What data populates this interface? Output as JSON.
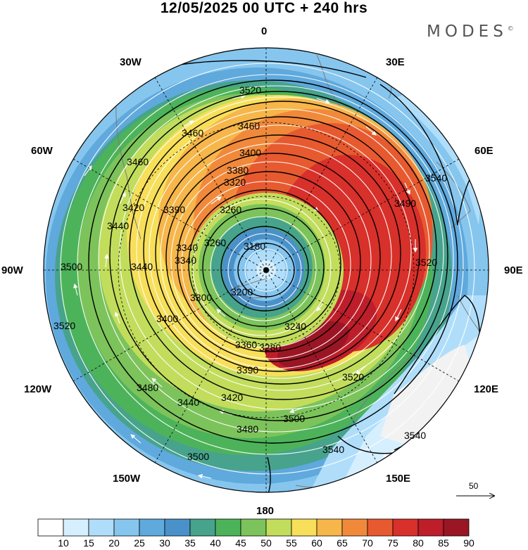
{
  "title": "12/05/2025  00 UTC  + 240 hrs",
  "brand": "MODES",
  "brand_mark": "©",
  "lon_labels": {
    "n": "0",
    "e30": "30E",
    "e60": "60E",
    "e90": "90E",
    "e120": "120E",
    "e150": "150E",
    "s": "180",
    "w150": "150W",
    "w120": "120W",
    "w90": "90W",
    "w60": "60W",
    "w30": "30W"
  },
  "contour_labels": [
    "3520",
    "3460",
    "3460",
    "3400",
    "3380",
    "3320",
    "3260",
    "3180",
    "3260",
    "3340",
    "3390",
    "3420",
    "3440",
    "3500",
    "3520",
    "3400",
    "3300",
    "3200",
    "3240",
    "3280",
    "3360",
    "3390",
    "3420",
    "3440",
    "3480",
    "3500",
    "3480",
    "3500",
    "3520",
    "3540",
    "3540",
    "3540",
    "3520",
    "3490",
    "3460",
    "3440",
    "3340"
  ],
  "colorbar": {
    "ticks": [
      "10",
      "15",
      "20",
      "25",
      "30",
      "35",
      "40",
      "45",
      "50",
      "55",
      "60",
      "65",
      "70",
      "75",
      "80",
      "85",
      "90"
    ],
    "colors": [
      "#ffffff",
      "#d6efff",
      "#b0defa",
      "#86c6ee",
      "#5fa9dd",
      "#4b91c9",
      "#47a38c",
      "#4db35a",
      "#7cc35b",
      "#c2dd5c",
      "#f7df5a",
      "#f6b64a",
      "#f1893b",
      "#e75a30",
      "#d8302a",
      "#bd1e2a",
      "#9a1624"
    ]
  },
  "scale_vector_label": "50",
  "colors": {
    "land_line": "#7a7a7a",
    "contour": "#000000",
    "wind_arrow": "#ffffff"
  }
}
